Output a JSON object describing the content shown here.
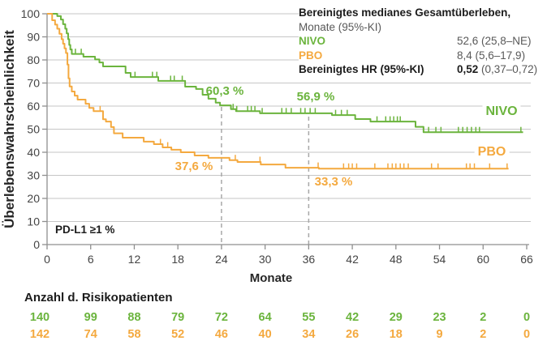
{
  "figure": {
    "y_axis_label": "Überlebenswahrscheinlichkeit",
    "x_axis_label": "Monate",
    "pd_l1_label": "PD-L1 ≥1 %"
  },
  "colors": {
    "nivo_green": "#6bb43d",
    "pbo_orange": "#f4a93f",
    "grid": "#c6c6c6",
    "axis": "#8f8f8f",
    "dashed": "#a8a8a8",
    "text_dark": "#1c1c1c",
    "text_gray": "#595959"
  },
  "legend": {
    "title_bold": "Bereinigtes medianes Gesamtüberleben,",
    "title_sub": "Monate (95%-KI)",
    "rows": [
      {
        "label": "NIVO",
        "value": "52,6 (25,8–NE)"
      },
      {
        "label": "PBO",
        "value": "8,4 (5,6–17,9)"
      }
    ],
    "hr_label": "Bereinigtes HR (95%-KI)",
    "hr_value_bold": "0,52",
    "hr_value_rest": " (0,37–0,72)"
  },
  "risk_table": {
    "title": "Anzahl d. Risikopatienten",
    "rows": [
      {
        "name": "NIVO",
        "values": [
          140,
          99,
          88,
          79,
          72,
          64,
          55,
          42,
          29,
          23,
          2,
          0
        ]
      },
      {
        "name": "PBO",
        "values": [
          142,
          74,
          58,
          52,
          46,
          40,
          34,
          26,
          18,
          9,
          2,
          0
        ]
      }
    ]
  },
  "chart_data": {
    "type": "line",
    "subtype": "kaplan_meier_step",
    "title": "Bereinigtes medianes Gesamtüberleben, Monate (95%-KI)",
    "xlabel": "Monate",
    "ylabel": "Überlebenswahrscheinlichkeit",
    "xlim": [
      0,
      66
    ],
    "ylim": [
      0,
      100
    ],
    "x_ticks": [
      0,
      6,
      12,
      18,
      24,
      30,
      36,
      42,
      48,
      54,
      60,
      66
    ],
    "y_ticks": [
      0,
      10,
      20,
      30,
      40,
      50,
      60,
      70,
      80,
      90,
      100
    ],
    "grid": true,
    "legend_position": "top-right",
    "dashed_reference_months": [
      24,
      36
    ],
    "landmarks": [
      {
        "series": "NIVO",
        "month": 24,
        "value_pct": 60.3,
        "label": "60,3 %"
      },
      {
        "series": "NIVO",
        "month": 36,
        "value_pct": 56.9,
        "label": "56,9 %"
      },
      {
        "series": "PBO",
        "month": 24,
        "value_pct": 37.6,
        "label": "37,6 %"
      },
      {
        "series": "PBO",
        "month": 36,
        "value_pct": 33.3,
        "label": "33,3 %"
      }
    ],
    "series": [
      {
        "name": "NIVO",
        "color": "#6bb43d",
        "median_os": "52,6 (25,8–NE)",
        "steps": [
          [
            0,
            100
          ],
          [
            1.4,
            99
          ],
          [
            1.9,
            97.5
          ],
          [
            2.2,
            95.5
          ],
          [
            2.5,
            93.5
          ],
          [
            2.7,
            91.5
          ],
          [
            2.9,
            89
          ],
          [
            3.05,
            86.5
          ],
          [
            3.2,
            84.5
          ],
          [
            3.4,
            82.6
          ],
          [
            5.0,
            81.4
          ],
          [
            6.6,
            80.2
          ],
          [
            7.2,
            78.9
          ],
          [
            7.7,
            77.2
          ],
          [
            10.8,
            74.4
          ],
          [
            11.5,
            72.6
          ],
          [
            15.3,
            70.9
          ],
          [
            19.0,
            68.4
          ],
          [
            20.5,
            67.4
          ],
          [
            21.4,
            64.9
          ],
          [
            22.2,
            63.2
          ],
          [
            23.2,
            61.5
          ],
          [
            23.8,
            60.3
          ],
          [
            25.3,
            58.7
          ],
          [
            26.0,
            57.8
          ],
          [
            29.3,
            56.9
          ],
          [
            39.2,
            56.1
          ],
          [
            42.4,
            54.4
          ],
          [
            44.5,
            53.3
          ],
          [
            50.7,
            51.0
          ],
          [
            51.8,
            48.7
          ],
          [
            65.5,
            48.7
          ]
        ],
        "censor_months": [
          3.4,
          3.9,
          4.7,
          12.1,
          14.5,
          15.1,
          17.0,
          17.5,
          18.6,
          25.6,
          26.1,
          27.6,
          28.1,
          28.6,
          29.6,
          32.3,
          32.9,
          33.6,
          34.9,
          35.5,
          36.2,
          36.9,
          39.7,
          40.5,
          41.3,
          45.4,
          46.6,
          47.2,
          47.7,
          48.2,
          48.6,
          52.5,
          53.5,
          54.2,
          56.6,
          57.2,
          57.8,
          58.4,
          59.0,
          59.5,
          65.2
        ]
      },
      {
        "name": "PBO",
        "color": "#f4a93f",
        "median_os": "8,4 (5,6–17,9)",
        "steps": [
          [
            0,
            100
          ],
          [
            0.7,
            97.2
          ],
          [
            1.1,
            95.3
          ],
          [
            1.4,
            93.5
          ],
          [
            1.7,
            91.3
          ],
          [
            2.0,
            89
          ],
          [
            2.2,
            87
          ],
          [
            2.4,
            85
          ],
          [
            2.6,
            83
          ],
          [
            2.8,
            78
          ],
          [
            2.95,
            72
          ],
          [
            3.1,
            68.5
          ],
          [
            3.4,
            66.3
          ],
          [
            3.8,
            64.5
          ],
          [
            4.2,
            62.8
          ],
          [
            5.3,
            61.0
          ],
          [
            5.8,
            59.2
          ],
          [
            6.4,
            57.8
          ],
          [
            7.7,
            54.3
          ],
          [
            8.1,
            53.3
          ],
          [
            8.8,
            50.9
          ],
          [
            9.2,
            48.2
          ],
          [
            10.4,
            46.3
          ],
          [
            13.3,
            44.6
          ],
          [
            14.7,
            43.5
          ],
          [
            15.9,
            42.1
          ],
          [
            17.1,
            41.1
          ],
          [
            18.4,
            40.0
          ],
          [
            20.3,
            38.6
          ],
          [
            22.2,
            37.6
          ],
          [
            25.1,
            36.6
          ],
          [
            26.2,
            35.8
          ],
          [
            29.4,
            34.7
          ],
          [
            32.8,
            33.3
          ],
          [
            37.4,
            32.9
          ],
          [
            63.5,
            32.9
          ]
        ],
        "censor_months": [
          7.3,
          15.6,
          16.6,
          25.9,
          29.3,
          37.3,
          40.8,
          41.5,
          42.0,
          42.6,
          45.1,
          46.9,
          47.5,
          48.0,
          48.6,
          49.1,
          49.7,
          52.9,
          53.8,
          57.7,
          58.2,
          58.8,
          60.9,
          63.3
        ]
      }
    ],
    "hazard_ratio": "0,52 (0,37–0,72)"
  }
}
